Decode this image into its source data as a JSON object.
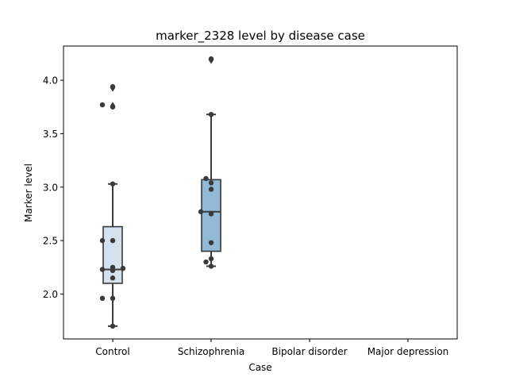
{
  "chart_data": {
    "type": "box",
    "title": "marker_2328 level by disease case",
    "xlabel": "Case",
    "ylabel": "Marker level",
    "categories": [
      "Control",
      "Schizophrenia",
      "Bipolar disorder",
      "Major depression"
    ],
    "ylim": [
      1.58,
      4.32
    ],
    "yticks": [
      "2.0",
      "2.5",
      "3.0",
      "3.5",
      "4.0"
    ],
    "colors": {
      "control_box": "#d4e2f0",
      "schizophrenia_box": "#91bad6",
      "line": "#3a3a3a",
      "points": "#3a3a3a"
    },
    "boxes": [
      {
        "category": "Control",
        "q1": 2.1,
        "median": 2.23,
        "q3": 2.63,
        "whisker_low": 1.7,
        "whisker_high": 3.03,
        "outliers": [
          3.76,
          3.93
        ]
      },
      {
        "category": "Schizophrenia",
        "q1": 2.4,
        "median": 2.77,
        "q3": 3.07,
        "whisker_low": 2.26,
        "whisker_high": 3.68,
        "outliers": [
          4.19
        ]
      }
    ],
    "points": [
      {
        "category": "Control",
        "values": [
          1.7,
          1.96,
          1.96,
          2.15,
          2.22,
          2.23,
          2.24,
          2.25,
          2.5,
          2.5,
          3.03,
          3.75,
          3.77,
          3.94
        ]
      },
      {
        "category": "Schizophrenia",
        "values": [
          2.26,
          2.3,
          2.33,
          2.48,
          2.75,
          2.77,
          2.98,
          3.04,
          3.08,
          3.68,
          4.2
        ]
      }
    ]
  }
}
